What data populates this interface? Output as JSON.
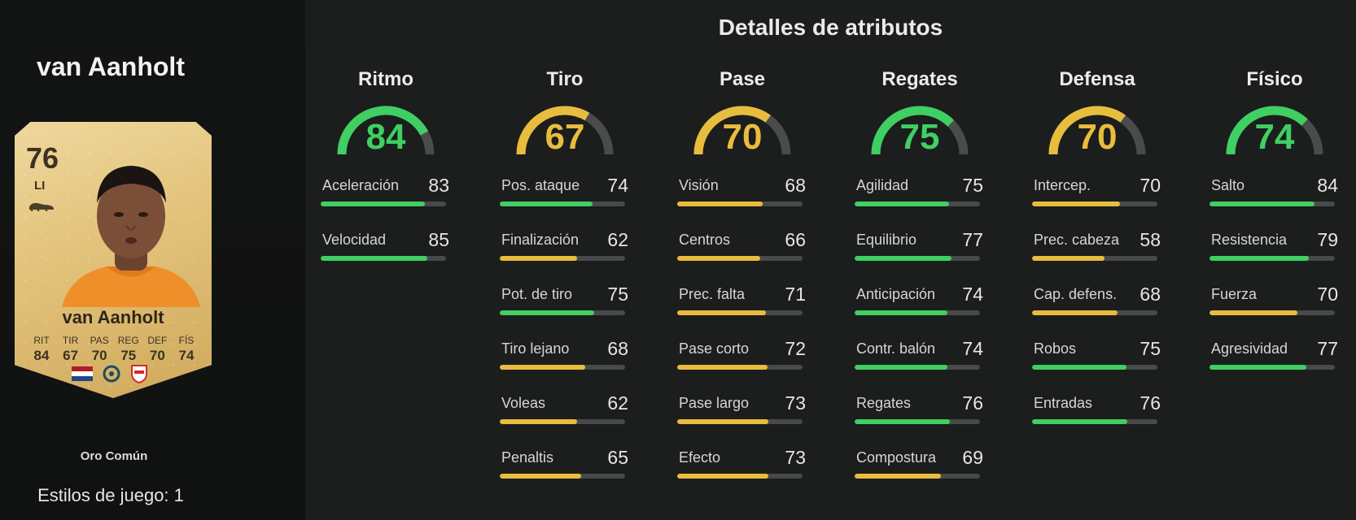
{
  "colors": {
    "high": "#3fcf62",
    "mid": "#e8bd3e",
    "track": "#4a4b4b"
  },
  "player": {
    "name": "van Aanholt",
    "rarity": "Oro Común",
    "playstyles": "Estilos de juego: 1",
    "card": {
      "ovr": "76",
      "pos": "LI",
      "name": "van Aanholt",
      "stat_labels": [
        "RIT",
        "TIR",
        "PAS",
        "REG",
        "DEF",
        "FÍS"
      ],
      "stat_values": [
        "84",
        "67",
        "70",
        "75",
        "70",
        "74"
      ]
    }
  },
  "title": "Detalles de atributos",
  "categories": [
    {
      "name": "Ritmo",
      "value": 84,
      "stats": [
        {
          "label": "Aceleración",
          "value": 83
        },
        {
          "label": "Velocidad",
          "value": 85
        }
      ]
    },
    {
      "name": "Tiro",
      "value": 67,
      "stats": [
        {
          "label": "Pos. ataque",
          "value": 74
        },
        {
          "label": "Finalización",
          "value": 62
        },
        {
          "label": "Pot. de tiro",
          "value": 75
        },
        {
          "label": "Tiro lejano",
          "value": 68
        },
        {
          "label": "Voleas",
          "value": 62
        },
        {
          "label": "Penaltis",
          "value": 65
        }
      ]
    },
    {
      "name": "Pase",
      "value": 70,
      "stats": [
        {
          "label": "Visión",
          "value": 68
        },
        {
          "label": "Centros",
          "value": 66
        },
        {
          "label": "Prec. falta",
          "value": 71
        },
        {
          "label": "Pase corto",
          "value": 72
        },
        {
          "label": "Pase largo",
          "value": 73
        },
        {
          "label": "Efecto",
          "value": 73
        }
      ]
    },
    {
      "name": "Regates",
      "value": 75,
      "stats": [
        {
          "label": "Agilidad",
          "value": 75
        },
        {
          "label": "Equilibrio",
          "value": 77
        },
        {
          "label": "Anticipación",
          "value": 74
        },
        {
          "label": "Contr. balón",
          "value": 74
        },
        {
          "label": "Regates",
          "value": 76
        },
        {
          "label": "Compostura",
          "value": 69
        }
      ]
    },
    {
      "name": "Defensa",
      "value": 70,
      "stats": [
        {
          "label": "Intercep.",
          "value": 70
        },
        {
          "label": "Prec. cabeza",
          "value": 58
        },
        {
          "label": "Cap. defens.",
          "value": 68
        },
        {
          "label": "Robos",
          "value": 75
        },
        {
          "label": "Entradas",
          "value": 76
        }
      ]
    },
    {
      "name": "Físico",
      "value": 74,
      "stats": [
        {
          "label": "Salto",
          "value": 84
        },
        {
          "label": "Resistencia",
          "value": 79
        },
        {
          "label": "Fuerza",
          "value": 70
        },
        {
          "label": "Agresividad",
          "value": 77
        }
      ]
    }
  ]
}
